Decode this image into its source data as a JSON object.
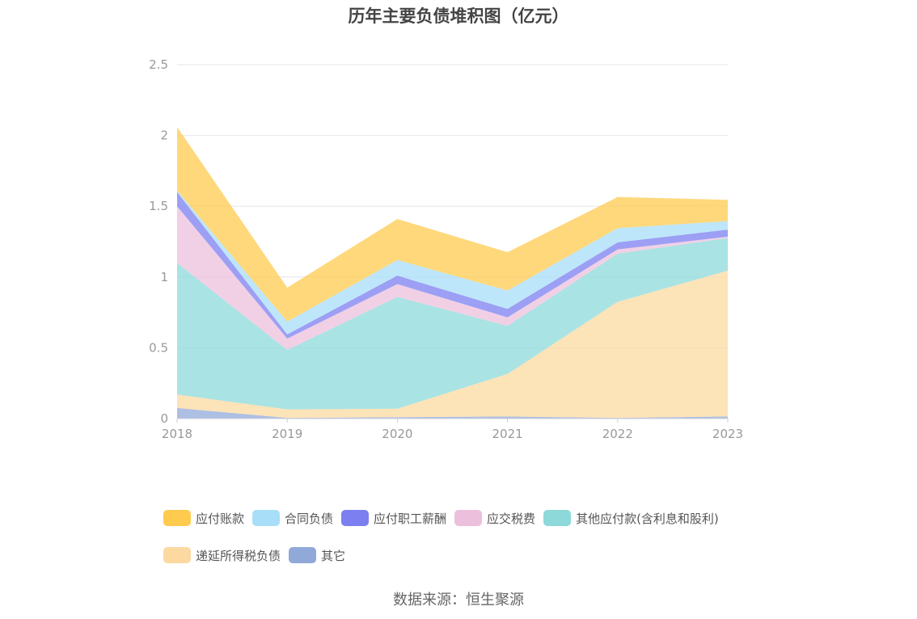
{
  "chart_data": {
    "type": "area",
    "stacked": true,
    "title": "历年主要负债堆积图（亿元）",
    "x": [
      "2018",
      "2019",
      "2020",
      "2021",
      "2022",
      "2023"
    ],
    "ylim": [
      0,
      2.5
    ],
    "yticks": [
      "0",
      "0.5",
      "1",
      "1.5",
      "2",
      "2.5"
    ],
    "grid": true,
    "legend_position": "bottom",
    "series": [
      {
        "name": "其它",
        "color": "#91a9d9",
        "values": [
          0.075,
          0.005,
          0.01,
          0.015,
          0.005,
          0.015
        ]
      },
      {
        "name": "递延所得税负债",
        "color": "#fcd9a0",
        "values": [
          0.095,
          0.06,
          0.06,
          0.3,
          0.82,
          1.03
        ]
      },
      {
        "name": "其他应付款(含利息和股利)",
        "color": "#8dd9d9",
        "values": [
          0.93,
          0.42,
          0.79,
          0.34,
          0.34,
          0.23
        ]
      },
      {
        "name": "应交税费",
        "color": "#ecc0dd",
        "values": [
          0.4,
          0.08,
          0.09,
          0.06,
          0.03,
          0.01
        ]
      },
      {
        "name": "应付职工薪酬",
        "color": "#7b7ff0",
        "values": [
          0.1,
          0.03,
          0.06,
          0.06,
          0.05,
          0.05
        ]
      },
      {
        "name": "合同负债",
        "color": "#a8def8",
        "values": [
          0.01,
          0.09,
          0.11,
          0.13,
          0.1,
          0.06
        ]
      },
      {
        "name": "应付账款",
        "color": "#fecb4f",
        "values": [
          0.45,
          0.24,
          0.29,
          0.27,
          0.22,
          0.15
        ]
      }
    ]
  },
  "legend": [
    {
      "label": "应付账款",
      "color": "#fecb4f"
    },
    {
      "label": "合同负债",
      "color": "#a8def8"
    },
    {
      "label": "应付职工薪酬",
      "color": "#7b7ff0"
    },
    {
      "label": "应交税费",
      "color": "#ecc0dd"
    },
    {
      "label": "其他应付款(含利息和股利)",
      "color": "#8dd9d9"
    },
    {
      "label": "递延所得税负债",
      "color": "#fcd9a0"
    },
    {
      "label": "其它",
      "color": "#91a9d9"
    }
  ],
  "source": "数据来源：恒生聚源"
}
